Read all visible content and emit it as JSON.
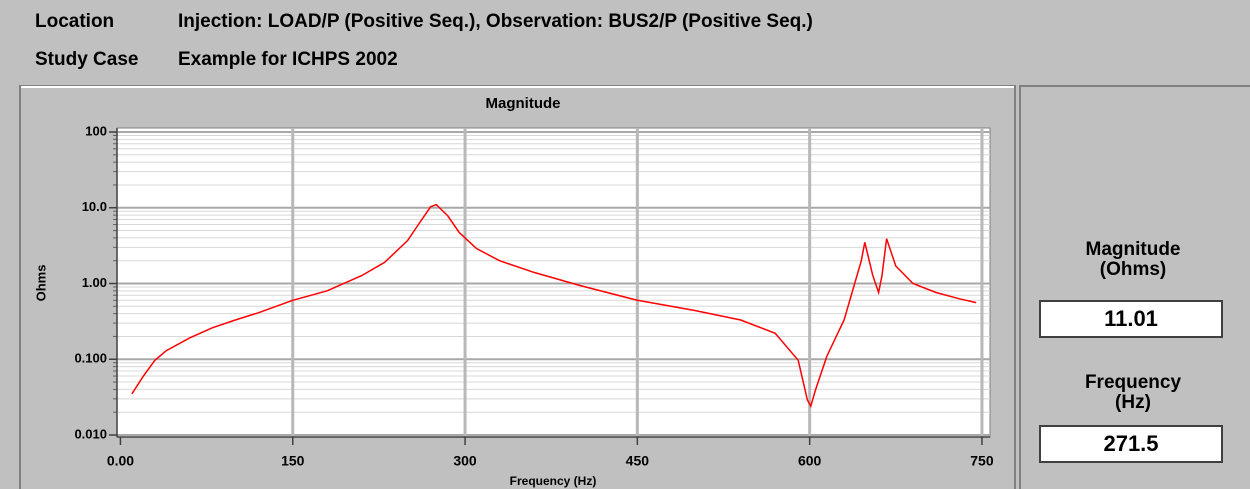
{
  "header": {
    "location_label": "Location",
    "location_value": "Injection: LOAD/P (Positive Seq.),  Observation: BUS2/P (Positive Seq.)",
    "study_case_label": "Study Case",
    "study_case_value": "Example for ICHPS 2002"
  },
  "chart_data": {
    "type": "line",
    "title": "Magnitude",
    "x_label": "Frequency (Hz)",
    "y_label": "Ohms",
    "log_y": true,
    "grid": true,
    "xlim": [
      -3,
      757
    ],
    "xticks": [
      {
        "value": 0,
        "label": "0.00"
      },
      150,
      300,
      450,
      600,
      750
    ],
    "ylim": [
      0.01,
      100
    ],
    "yticks": [
      {
        "value": 0.01,
        "label": "0.010"
      },
      {
        "value": 0.1,
        "label": "0.100"
      },
      {
        "value": 1,
        "label": "1.00"
      },
      {
        "value": 10,
        "label": "10.0"
      },
      100
    ],
    "x": [
      10,
      20,
      30,
      40,
      60,
      80,
      100,
      120,
      150,
      180,
      210,
      230,
      250,
      260,
      270,
      275,
      285,
      295,
      310,
      330,
      360,
      400,
      450,
      500,
      540,
      570,
      590,
      598,
      601,
      605,
      615,
      630,
      645,
      648,
      655,
      660,
      663,
      667,
      675,
      690,
      710,
      730,
      745
    ],
    "series": [
      {
        "name": "Magnitude",
        "color": "#ff0000",
        "values": [
          0.035,
          0.06,
          0.097,
          0.13,
          0.19,
          0.26,
          0.33,
          0.41,
          0.6,
          0.8,
          1.27,
          1.9,
          3.7,
          6.2,
          10.3,
          11.0,
          7.8,
          4.7,
          2.9,
          2.0,
          1.4,
          0.94,
          0.6,
          0.44,
          0.33,
          0.22,
          0.097,
          0.029,
          0.024,
          0.039,
          0.11,
          0.33,
          2.0,
          3.5,
          1.27,
          0.76,
          1.27,
          3.9,
          1.7,
          1.0,
          0.76,
          0.63,
          0.56
        ]
      }
    ]
  },
  "readout": {
    "magnitude_label": [
      "Magnitude",
      "(Ohms)"
    ],
    "magnitude_value": "11.01",
    "frequency_label": [
      "Frequency",
      "(Hz)"
    ],
    "frequency_value": "271.5"
  }
}
